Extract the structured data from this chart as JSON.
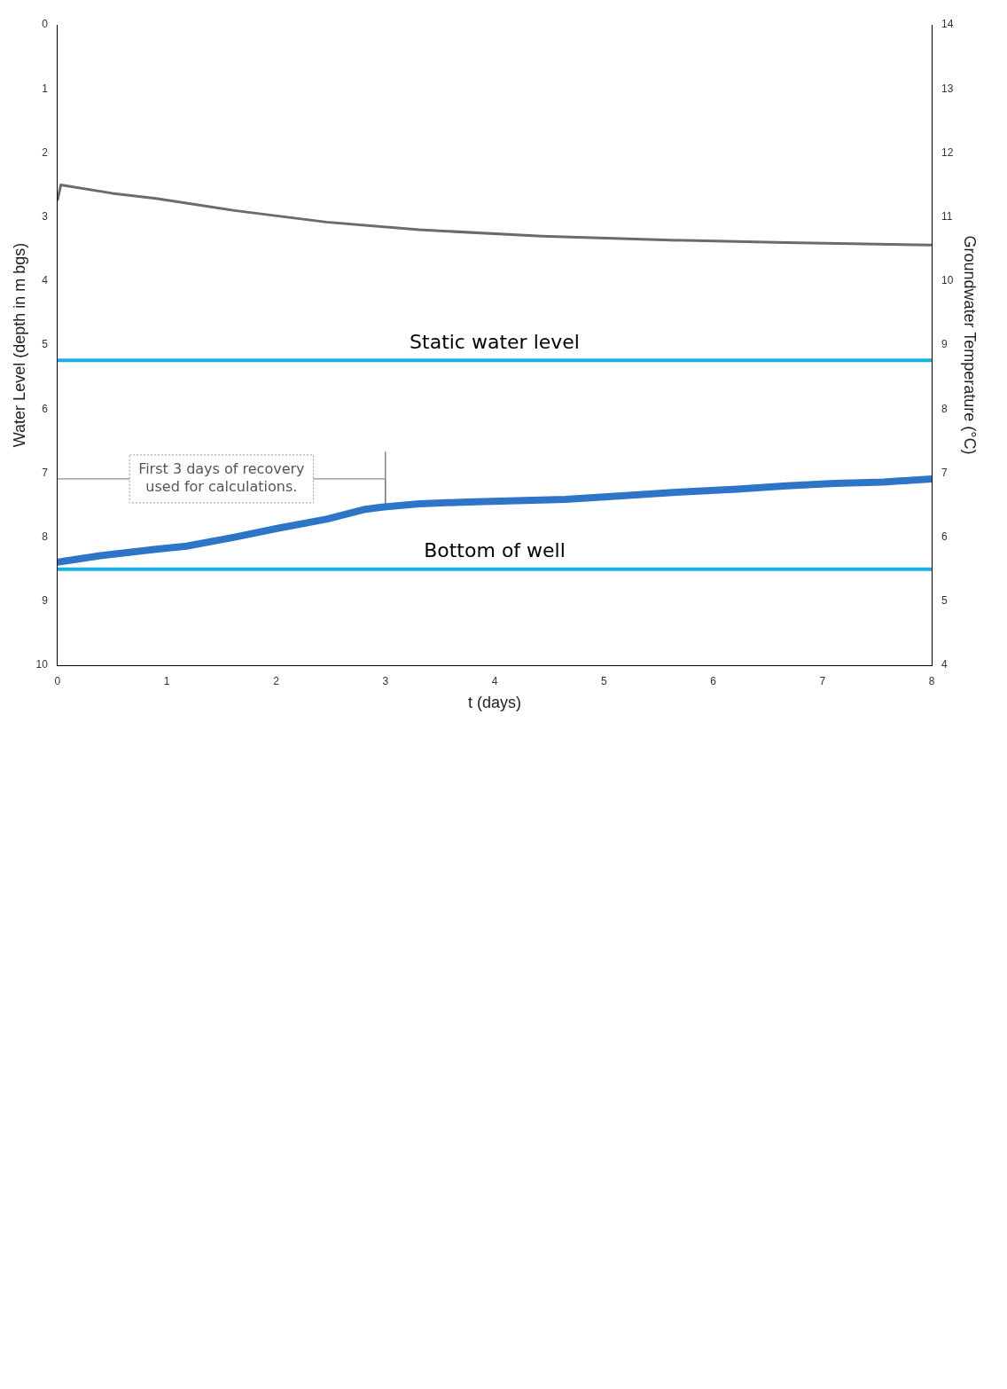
{
  "chart_data": {
    "type": "line",
    "xlabel": "t (days)",
    "ylabel": "Water Level (depth in m bgs)",
    "y2label": "Groundwater Temperature (°C)",
    "xlim": [
      0,
      8
    ],
    "xticks": [
      0,
      1,
      2,
      3,
      4,
      5,
      6,
      7,
      8
    ],
    "ylim": [
      10,
      0
    ],
    "yticks": [
      0,
      1,
      2,
      3,
      4,
      5,
      6,
      7,
      8,
      9,
      10
    ],
    "y2lim": [
      4,
      14
    ],
    "y2ticks": [
      4,
      5,
      6,
      7,
      8,
      9,
      10,
      11,
      12,
      13,
      14
    ],
    "grid": false,
    "legend": false,
    "marker": "none",
    "line_style": "solid",
    "series": [
      {
        "color": "#2e75c8",
        "x": [
          0,
          0.39,
          0.9,
          1.18,
          1.62,
          2.02,
          2.46,
          2.8,
          2.97,
          3.31,
          3.75,
          4.2,
          4.65,
          5.1,
          5.66,
          6.22,
          6.67,
          7.11,
          7.56,
          8
        ],
        "values": [
          8.39,
          8.29,
          8.19,
          8.14,
          8.0,
          7.86,
          7.72,
          7.57,
          7.53,
          7.48,
          7.45,
          7.43,
          7.41,
          7.36,
          7.3,
          7.25,
          7.2,
          7.16,
          7.14,
          7.09
        ]
      },
      {
        "color": "#6b6b6b",
        "axis": "y2",
        "x": [
          0,
          0.03,
          0.5,
          0.9,
          1.62,
          2.46,
          3.31,
          4.43,
          5.55,
          6.67,
          8
        ],
        "values": [
          11.27,
          11.5,
          11.37,
          11.29,
          11.1,
          10.92,
          10.8,
          10.7,
          10.64,
          10.6,
          10.56
        ]
      },
      {
        "color": "#777777",
        "x": [
          0,
          3,
          3,
          3
        ],
        "values": [
          7.09,
          7.09,
          6.67,
          7.5
        ]
      }
    ],
    "ref_lines": [
      {
        "axis": "y",
        "value": 5.24,
        "label": "Static water level",
        "color": "#1ab0e0"
      },
      {
        "axis": "y",
        "value": 8.5,
        "label": "Bottom of well",
        "color": "#1ab0e0"
      }
    ],
    "annotations": [
      "First 3 days of recovery used for calculations."
    ]
  }
}
